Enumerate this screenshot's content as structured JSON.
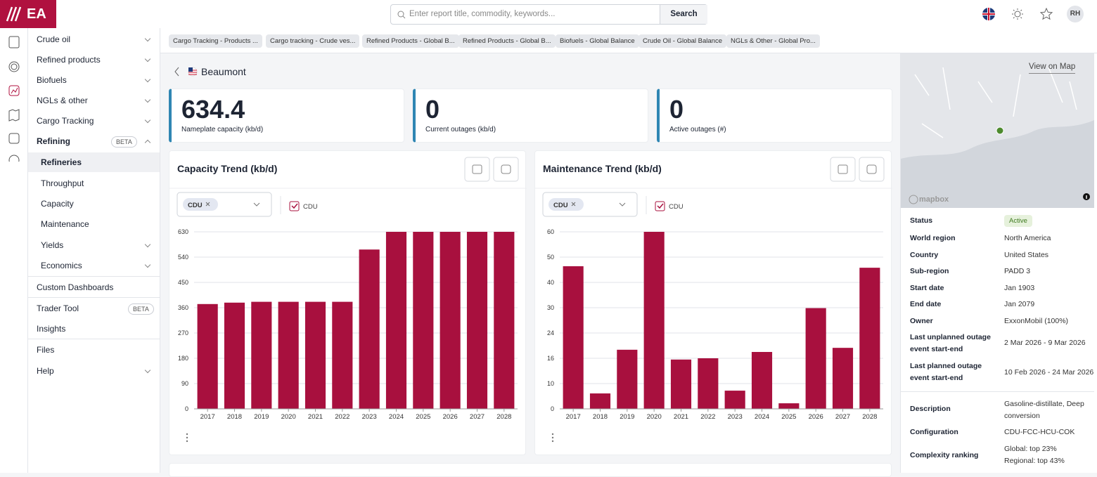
{
  "header": {
    "logo": "EA",
    "search_placeholder": "Enter report title, commodity, keywords...",
    "search_button": "Search",
    "user": "RH"
  },
  "sidebar": {
    "top": [
      "Crude oil",
      "Refined products",
      "Biofuels",
      "NGLs & other",
      "Cargo Tracking"
    ],
    "refining": {
      "label": "Refining",
      "badge": "BETA",
      "items": [
        "Refineries",
        "Throughput",
        "Capacity",
        "Maintenance",
        "Yields",
        "Economics"
      ]
    },
    "bottom": [
      {
        "label": "Custom Dashboards"
      },
      {
        "label": "Trader Tool",
        "badge": "BETA"
      },
      {
        "label": "Insights"
      },
      {
        "label": "Files"
      },
      {
        "label": "Help"
      }
    ]
  },
  "tabs": [
    "Cargo Tracking - Products ...",
    "Cargo tracking - Crude ves...",
    "Refined Products - Global B...",
    "Refined Products - Global B...",
    "Biofuels - Global Balance",
    "Crude Oil - Global Balance",
    "NGLs & Other - Global Pro..."
  ],
  "breadcrumb": "Beaumont",
  "kpis": [
    {
      "value": 634.4,
      "label": "Nameplate capacity (kb/d)"
    },
    {
      "value": 0,
      "label": "Current outages (kb/d)"
    },
    {
      "value": 0,
      "label": "Active outages (#)"
    }
  ],
  "chart_data": [
    {
      "type": "bar",
      "title": "Capacity Trend (kb/d)",
      "filter_chip": "CDU",
      "checkbox_label": "CDU",
      "color": "#a8103e",
      "categories": [
        "2017",
        "2018",
        "2019",
        "2020",
        "2021",
        "2022",
        "2023",
        "2024",
        "2025",
        "2026",
        "2027",
        "2028"
      ],
      "values": [
        373,
        378,
        381,
        381,
        381,
        381,
        567,
        630,
        630,
        630,
        630,
        630
      ],
      "ylim": [
        0,
        630
      ],
      "yticks": [
        0,
        90,
        180,
        270,
        360,
        450,
        540,
        630
      ],
      "grid": true
    },
    {
      "type": "bar",
      "title": "Maintenance Trend (kb/d)",
      "filter_chip": "CDU",
      "checkbox_label": "CDU",
      "color": "#a8103e",
      "categories": [
        "2017",
        "2018",
        "2019",
        "2020",
        "2021",
        "2022",
        "2023",
        "2024",
        "2025",
        "2026",
        "2027",
        "2028"
      ],
      "values": [
        46.4,
        6.1,
        18.7,
        60,
        15.7,
        16,
        7.2,
        18,
        2.2,
        29.9,
        19.3,
        45.8
      ],
      "ylim": [
        0,
        60
      ],
      "yticks": [
        0,
        10,
        16,
        24,
        30,
        40,
        50,
        60
      ],
      "grid": true
    }
  ],
  "map": {
    "link": "View on Map",
    "attribution": "mapbox"
  },
  "details": [
    {
      "label": "Status",
      "value": "Active"
    },
    {
      "label": "World region",
      "value": "North America"
    },
    {
      "label": "Country",
      "value": "United States"
    },
    {
      "label": "Sub-region",
      "value": "PADD 3"
    },
    {
      "label": "Start date",
      "value": "Jan 1903"
    },
    {
      "label": "End date",
      "value": "Jan 2079"
    },
    {
      "label": "Owner",
      "value": "ExxonMobil (100%)"
    },
    {
      "label": "Last unplanned outage event start-end",
      "value": "2 Mar 2026 - 9 Mar 2026"
    },
    {
      "label": "Last planned outage event start-end",
      "value": "10 Feb 2026 - 24 Mar 2026"
    },
    {
      "label": "Description",
      "value": "Gasoline-distillate, Deep conversion"
    },
    {
      "label": "Configuration",
      "value": "CDU-FCC-HCU-COK"
    },
    {
      "label": "Complexity ranking",
      "value": [
        "Global: top 23%",
        "Regional: top 43%"
      ]
    }
  ]
}
